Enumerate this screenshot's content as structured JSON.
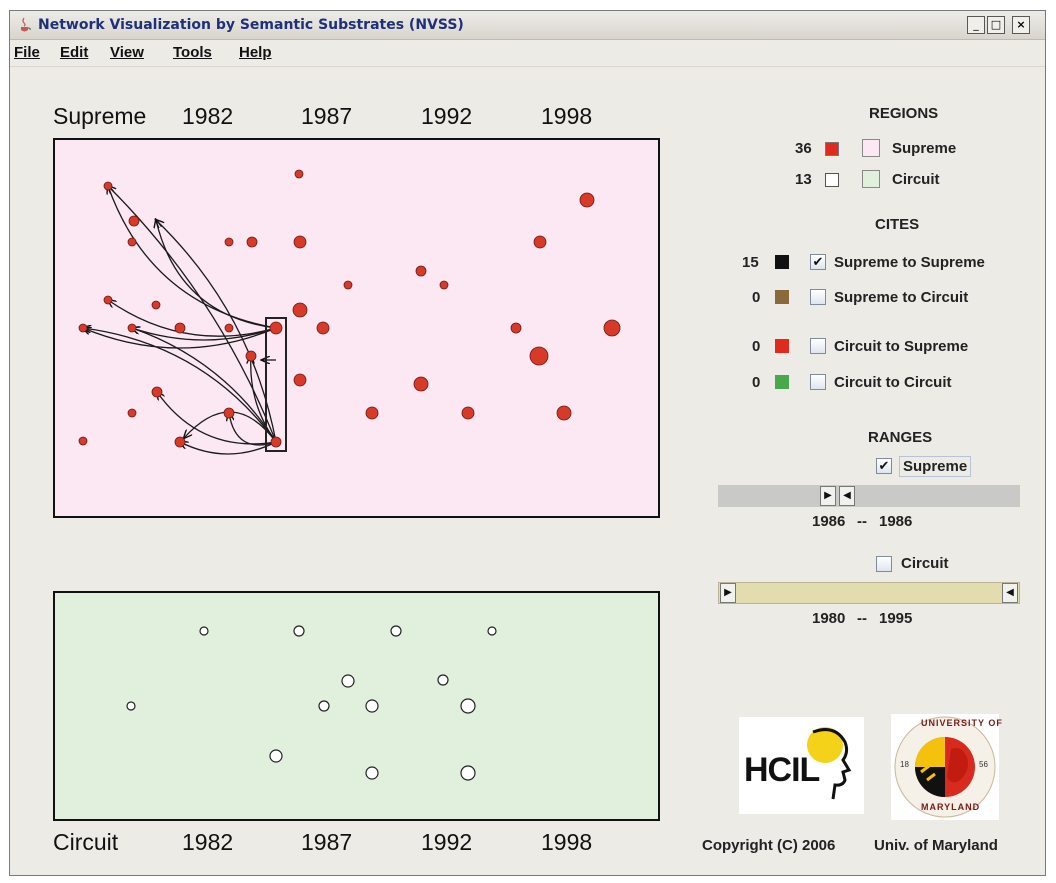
{
  "window": {
    "title": "Network Visualization by Semantic Substrates (NVSS)",
    "controls": {
      "minimize": "_",
      "maximize": "□",
      "close": "×"
    }
  },
  "menu": [
    "File",
    "Edit",
    "View",
    "Tools",
    "Help"
  ],
  "supreme_panel": {
    "label": "Supreme",
    "years": [
      "1982",
      "1987",
      "1992",
      "1998"
    ],
    "bg_color": "#fbe8f2",
    "node_color": "#d83a2a"
  },
  "circuit_panel": {
    "label": "Circuit",
    "years": [
      "1982",
      "1987",
      "1992",
      "1998"
    ],
    "bg_color": "#e1f0dd"
  },
  "regions": {
    "heading": "REGIONS",
    "items": [
      {
        "count": "36",
        "swatch_color": "#e02a1e",
        "region_color": "#fbe8f2",
        "label": "Supreme"
      },
      {
        "count": "13",
        "swatch_color": "#ffffff",
        "region_color": "#e1f0dd",
        "label": "Circuit"
      }
    ]
  },
  "cites": {
    "heading": "CITES",
    "items": [
      {
        "count": "15",
        "color": "#111111",
        "checked": true,
        "label": "Supreme to Supreme"
      },
      {
        "count": "0",
        "color": "#8a6a3a",
        "checked": false,
        "label": "Supreme to Circuit"
      },
      {
        "count": "0",
        "color": "#e02a1e",
        "checked": false,
        "label": "Circuit to Supreme"
      },
      {
        "count": "0",
        "color": "#4aa84a",
        "checked": false,
        "label": "Circuit to Circuit"
      }
    ]
  },
  "ranges": {
    "heading": "RANGES",
    "supreme": {
      "checked": true,
      "label": "Supreme",
      "start": "1986",
      "end": "1986",
      "sep": "--"
    },
    "circuit": {
      "checked": false,
      "label": "Circuit",
      "start": "1980",
      "end": "1995",
      "sep": "--"
    }
  },
  "logos": {
    "hcil": "HCIL",
    "umd_top": "UNIVERSITY OF",
    "umd_bottom": "MARYLAND",
    "umd_left": "18",
    "umd_right": "56"
  },
  "footer": {
    "copyright": "Copyright (C) 2006",
    "org": "Univ. of Maryland"
  }
}
